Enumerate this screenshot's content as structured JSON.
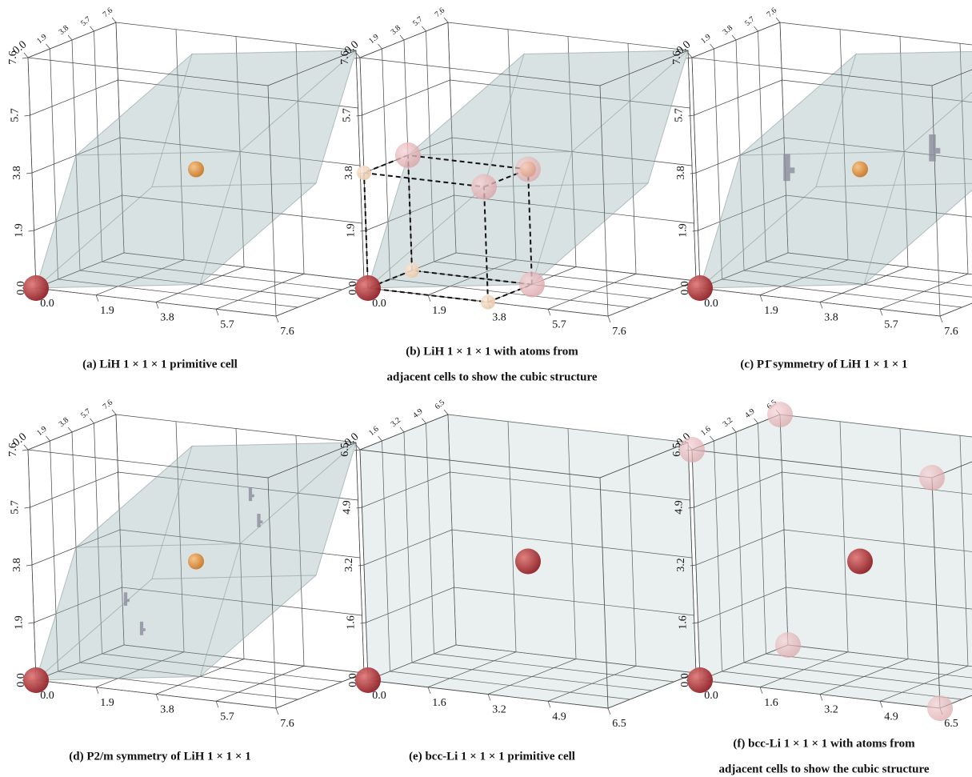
{
  "panels": [
    {
      "x_ticks": [
        "0.0",
        "1.9",
        "3.8",
        "5.7",
        "7.6"
      ],
      "z_ticks": [
        "0.0",
        "1.9",
        "3.8",
        "5.7",
        "7.6"
      ],
      "depth_ticks": [
        "0.0",
        "1.9",
        "3.8",
        "5.7",
        "7.6"
      ],
      "caption": [
        "(a) LiH 1 × 1 × 1 primitive cell"
      ]
    },
    {
      "x_ticks": [
        "0.0",
        "1.9",
        "3.8",
        "5.7",
        "7.6"
      ],
      "z_ticks": [
        "0.0",
        "1.9",
        "3.8",
        "5.7",
        "7.6"
      ],
      "depth_ticks": [
        "0.0",
        "1.9",
        "3.8",
        "5.7",
        "7.6"
      ],
      "caption": [
        "(b) LiH 1 × 1 × 1 with atoms from",
        "adjacent cells to show the cubic structure"
      ]
    },
    {
      "x_ticks": [
        "0.0",
        "1.9",
        "3.8",
        "5.7",
        "7.6"
      ],
      "z_ticks": [
        "0.0",
        "1.9",
        "3.8",
        "5.7",
        "7.6"
      ],
      "depth_ticks": [
        "0.0",
        "1.9",
        "3.8",
        "5.7",
        "7.6"
      ],
      "caption": [
        "(c) P1̄ symmetry of LiH 1 × 1 × 1"
      ]
    },
    {
      "x_ticks": [
        "0.0",
        "1.9",
        "3.8",
        "5.7",
        "7.6"
      ],
      "z_ticks": [
        "0.0",
        "1.9",
        "3.8",
        "5.7",
        "7.6"
      ],
      "depth_ticks": [
        "0.0",
        "1.9",
        "3.8",
        "5.7",
        "7.6"
      ],
      "caption": [
        "(d) P2/m symmetry of LiH 1 × 1 × 1"
      ]
    },
    {
      "x_ticks": [
        "0.0",
        "1.6",
        "3.2",
        "4.9",
        "6.5"
      ],
      "z_ticks": [
        "0.0",
        "1.6",
        "3.2",
        "4.9",
        "6.5"
      ],
      "depth_ticks": [
        "0.0",
        "1.6",
        "3.2",
        "4.9",
        "6.5"
      ],
      "caption": [
        "(e) bcc-Li 1 × 1 × 1 primitive cell"
      ]
    },
    {
      "x_ticks": [
        "0.0",
        "1.6",
        "3.2",
        "4.9",
        "6.5"
      ],
      "z_ticks": [
        "0.0",
        "1.6",
        "3.2",
        "4.9",
        "6.5"
      ],
      "depth_ticks": [
        "0.0",
        "1.6",
        "3.2",
        "4.9",
        "6.5"
      ],
      "caption": [
        "(f) bcc-Li 1 × 1 × 1 with atoms from",
        "adjacent cells to show the cubic structure"
      ]
    }
  ]
}
